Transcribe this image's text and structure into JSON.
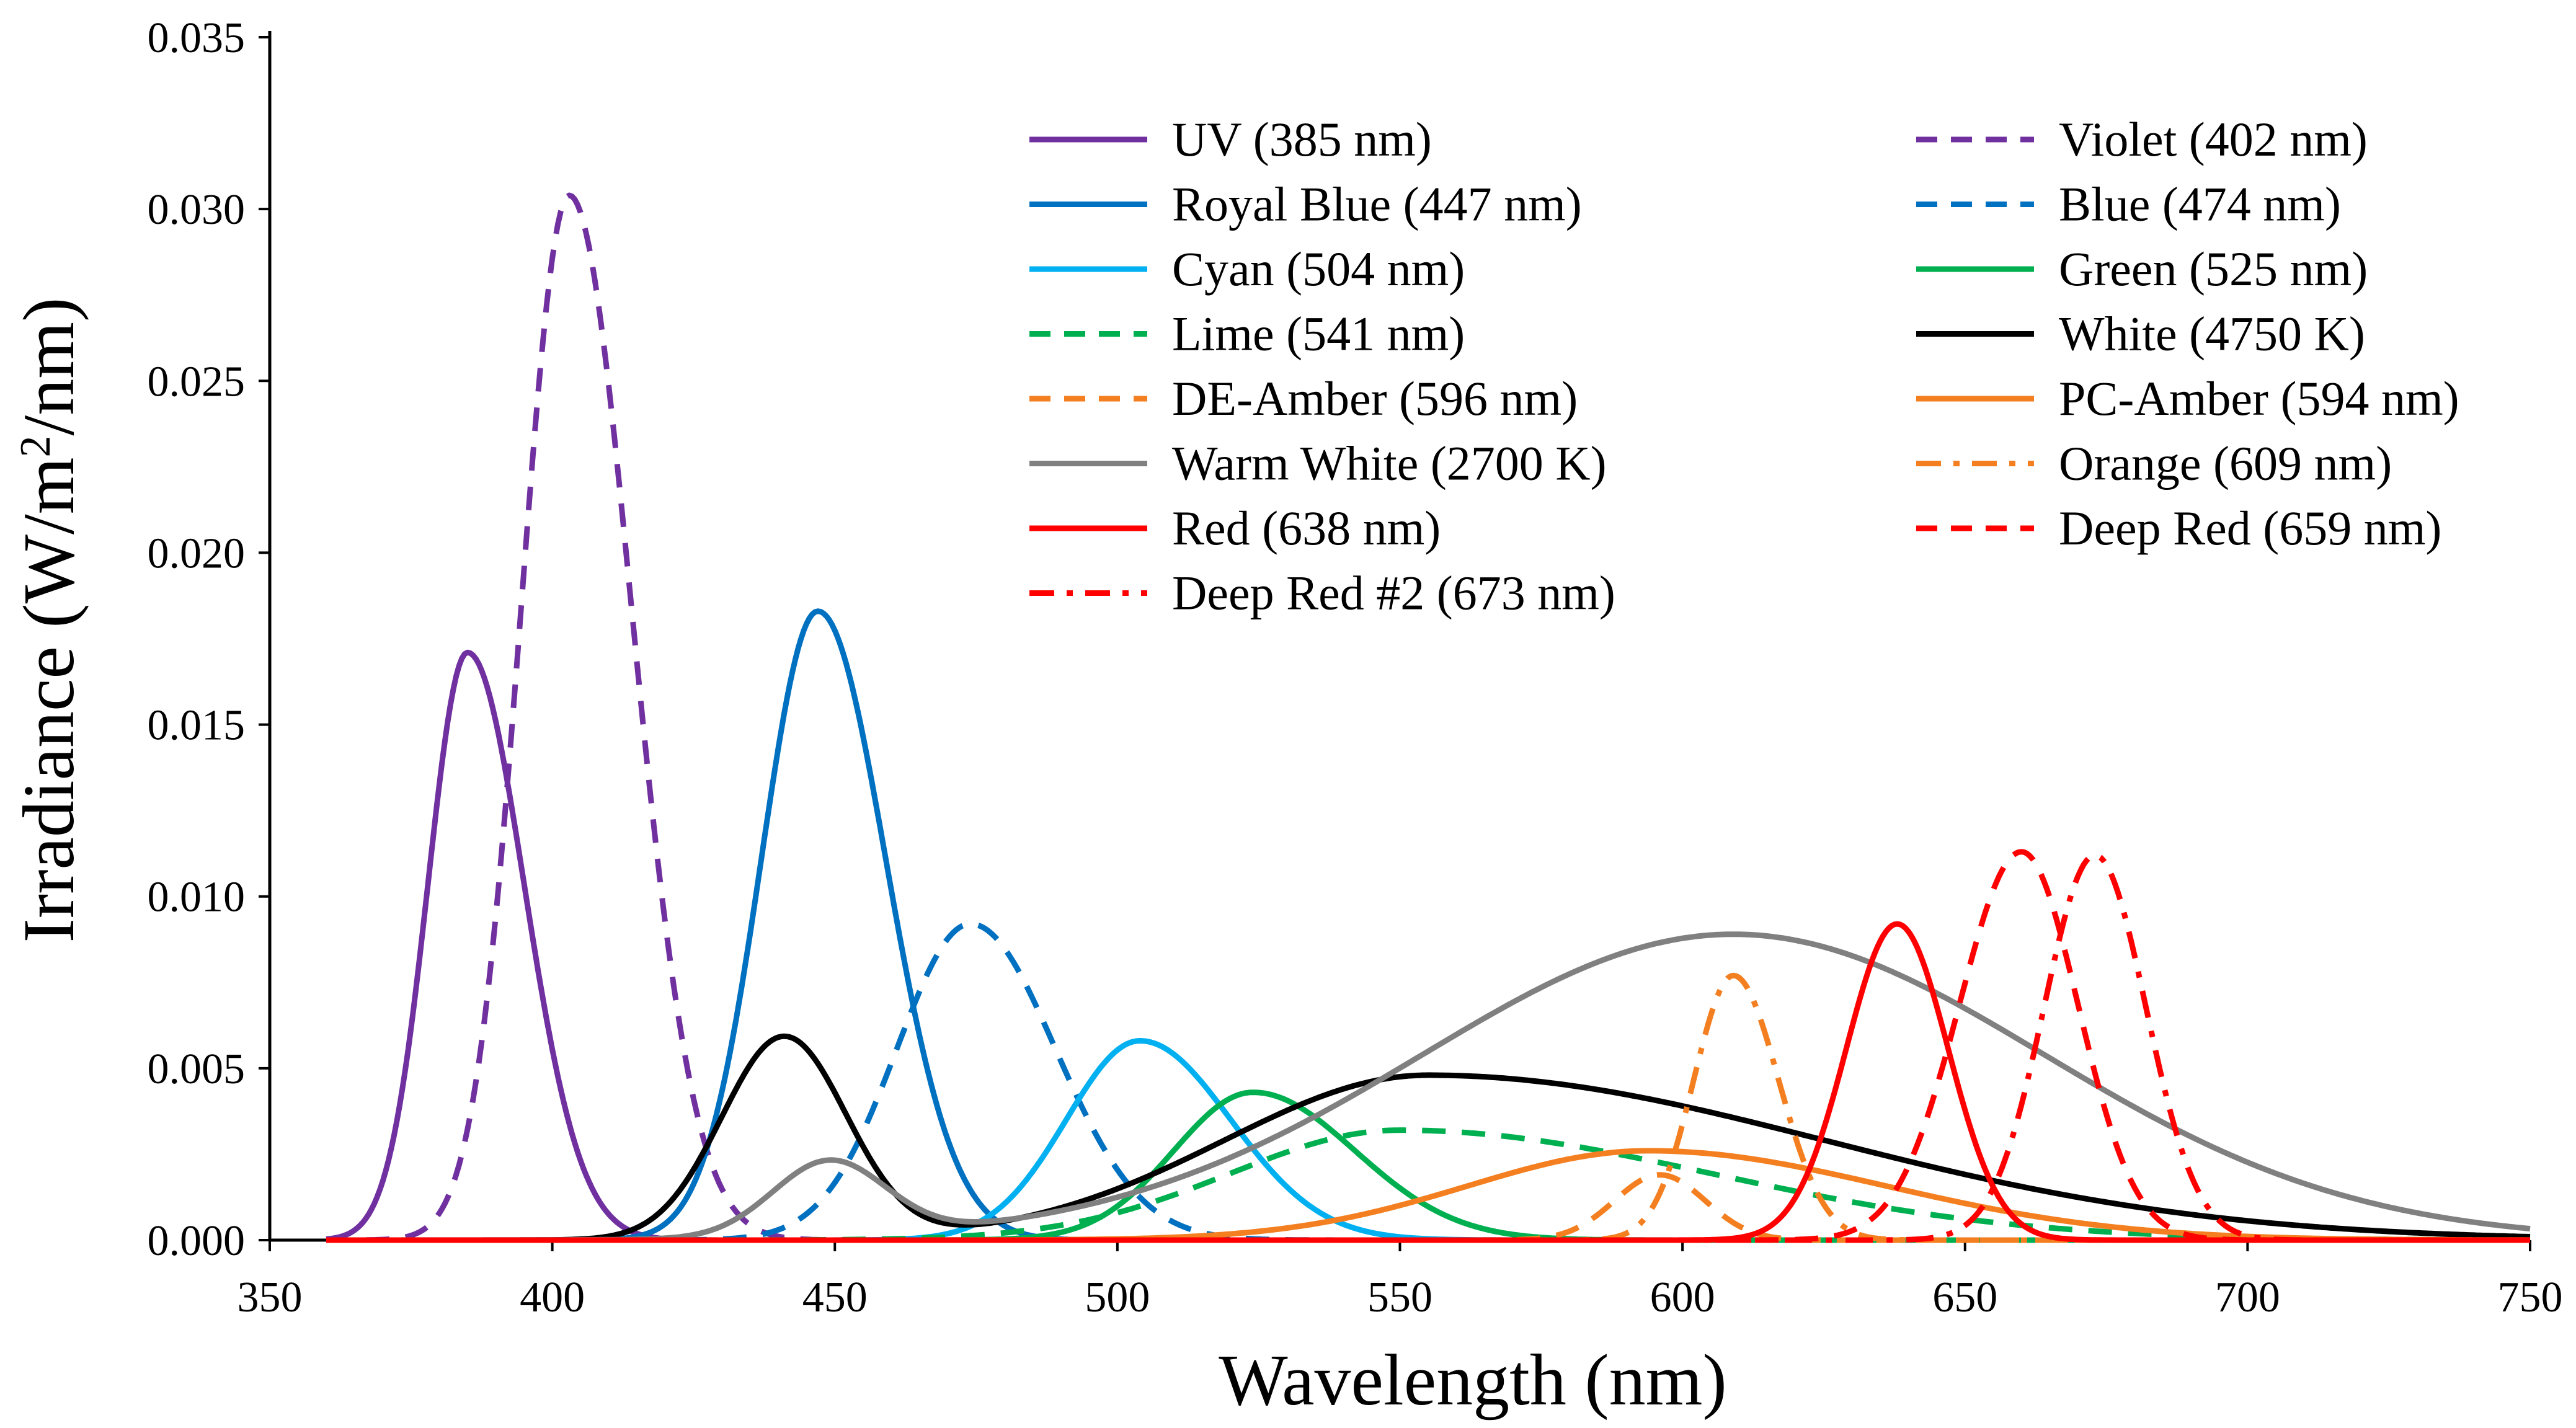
{
  "chart_data": {
    "type": "line",
    "title": "",
    "xlabel": "Wavelength (nm)",
    "ylabel_main": "Irradiance (W/m",
    "ylabel_sup": "2",
    "ylabel_tail": "/nm)",
    "xlim": [
      350,
      750
    ],
    "ylim": [
      0,
      0.035
    ],
    "x_ticks": [
      350,
      400,
      450,
      500,
      550,
      600,
      650,
      700,
      750
    ],
    "y_ticks": [
      "0.000",
      "0.005",
      "0.010",
      "0.015",
      "0.020",
      "0.025",
      "0.030",
      "0.035"
    ],
    "legend_position": "top-right",
    "series": [
      {
        "name": "UV (385 nm)",
        "color": "#7030A0",
        "dash": "solid",
        "peak_nm": 385,
        "peak": 0.0171,
        "width_left": 7,
        "width_right": 10
      },
      {
        "name": "Violet (402 nm)",
        "color": "#7030A0",
        "dash": "dash",
        "peak_nm": 403,
        "peak": 0.0304,
        "width_left": 8.5,
        "width_right": 11
      },
      {
        "name": "Royal Blue (447 nm)",
        "color": "#0070C0",
        "dash": "solid",
        "peak_nm": 447,
        "peak": 0.0183,
        "width_left": 10,
        "width_right": 12
      },
      {
        "name": "Blue (474 nm)",
        "color": "#0070C0",
        "dash": "dash",
        "peak_nm": 474,
        "peak": 0.0092,
        "width_left": 13,
        "width_right": 15
      },
      {
        "name": "Cyan (504 nm)",
        "color": "#00B0F0",
        "dash": "solid",
        "peak_nm": 504,
        "peak": 0.0058,
        "width_left": 13,
        "width_right": 16
      },
      {
        "name": "Green (525 nm)",
        "color": "#00B050",
        "dash": "solid",
        "peak_nm": 524,
        "peak": 0.0043,
        "width_left": 14,
        "width_right": 18
      },
      {
        "name": "Lime (541 nm)",
        "color": "#00B050",
        "dash": "dash",
        "peak_nm": 550,
        "peak": 0.0032,
        "width_left": 30,
        "width_right": 55
      },
      {
        "name": "White (4750 K)",
        "color": "#000000",
        "dash": "solid",
        "peak_nm": 555,
        "peak": 0.0048,
        "width_left": 36,
        "width_right": 70,
        "blue_peak_nm": 441,
        "blue_peak": 0.0059,
        "blue_width": 11
      },
      {
        "name": "DE-Amber (596 nm)",
        "color": "#F47F20",
        "dash": "dash",
        "peak_nm": 596,
        "peak": 0.0019,
        "width_left": 8,
        "width_right": 8
      },
      {
        "name": "PC-Amber (594 nm)",
        "color": "#F47F20",
        "dash": "solid",
        "peak_nm": 594,
        "peak": 0.0026,
        "width_left": 32,
        "width_right": 42
      },
      {
        "name": "Warm White (2700 K)",
        "color": "#808080",
        "dash": "solid",
        "peak_nm": 609,
        "peak": 0.0089,
        "width_left": 55,
        "width_right": 55,
        "blue_peak_nm": 449,
        "blue_peak": 0.0022,
        "blue_width": 10
      },
      {
        "name": "Orange (609 nm)",
        "color": "#F47F20",
        "dash": "dashdot",
        "peak_nm": 609,
        "peak": 0.0077,
        "width_left": 7,
        "width_right": 8
      },
      {
        "name": "Red (638 nm)",
        "color": "#FF0000",
        "dash": "solid",
        "peak_nm": 638,
        "peak": 0.0092,
        "width_left": 9,
        "width_right": 9
      },
      {
        "name": "Deep Red (659 nm)",
        "color": "#FF0000",
        "dash": "dash",
        "peak_nm": 660,
        "peak": 0.0113,
        "width_left": 11,
        "width_right": 10
      },
      {
        "name": "Deep Red #2 (673 nm)",
        "color": "#FF0000",
        "dash": "dashdot",
        "peak_nm": 673,
        "peak": 0.0112,
        "width_left": 9,
        "width_right": 9
      }
    ]
  }
}
